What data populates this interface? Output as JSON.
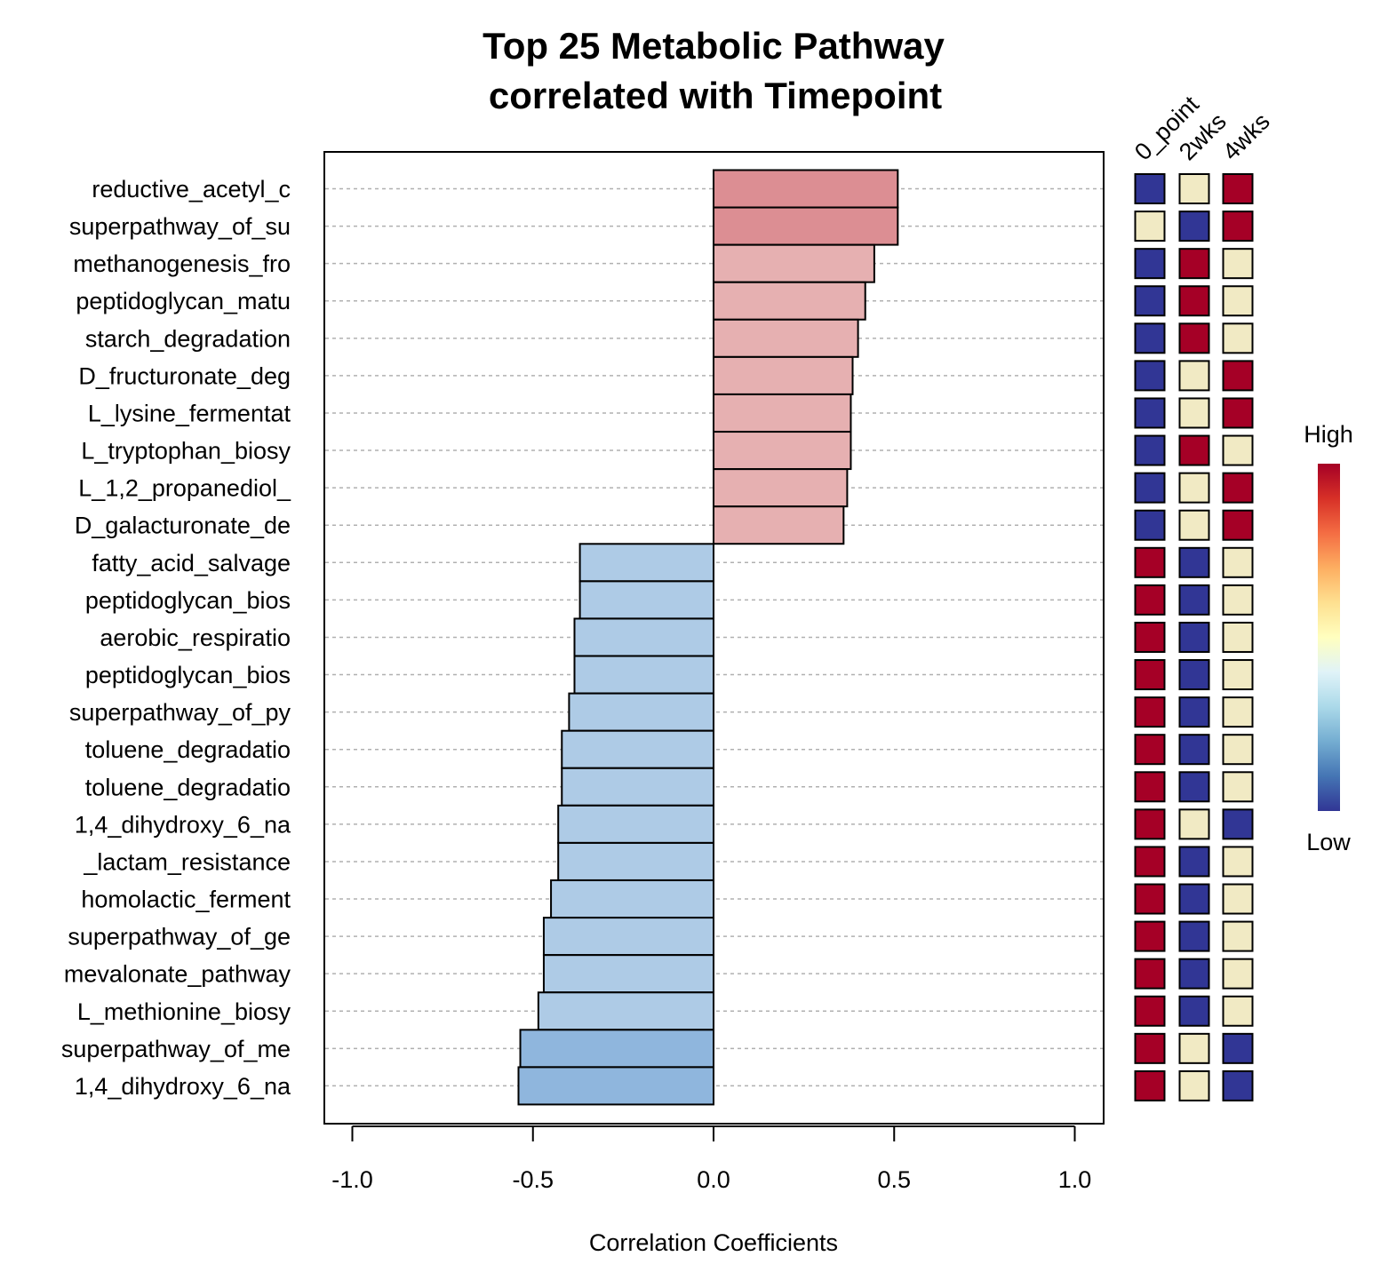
{
  "chart_data": {
    "type": "bar",
    "orientation": "horizontal",
    "title_lines": [
      "Top 25 Metabolic Pathway",
      "correlated with Timepoint"
    ],
    "xlabel": "Correlation Coefficients",
    "ylabel": "",
    "xlim": [
      -1.0,
      1.0
    ],
    "xticks": [
      -1.0,
      -0.5,
      0.0,
      0.5,
      1.0
    ],
    "xtick_labels": [
      "-1.0",
      "-0.5",
      "0.0",
      "0.5",
      "1.0"
    ],
    "grid": "dotted horizontal at each category",
    "categories": [
      "reductive_acetyl_c",
      "superpathway_of_su",
      "methanogenesis_fro",
      "peptidoglycan_matu",
      "starch_degradation",
      "D_fructuronate_deg",
      "L_lysine_fermentat",
      "L_tryptophan_biosy",
      "L_1,2_propanediol_",
      "D_galacturonate_de",
      "fatty_acid_salvage",
      "peptidoglycan_bios",
      "aerobic_respiratio",
      "peptidoglycan_bios",
      "superpathway_of_py",
      "toluene_degradatio",
      "toluene_degradatio",
      "1,4_dihydroxy_6_na",
      "_lactam_resistance",
      "homolactic_ferment",
      "superpathway_of_ge",
      "mevalonate_pathway",
      "L_methionine_biosy",
      "superpathway_of_me",
      "1,4_dihydroxy_6_na"
    ],
    "values": [
      0.51,
      0.51,
      0.445,
      0.42,
      0.4,
      0.385,
      0.38,
      0.38,
      0.37,
      0.36,
      -0.37,
      -0.37,
      -0.385,
      -0.385,
      -0.4,
      -0.42,
      -0.42,
      -0.43,
      -0.43,
      -0.45,
      -0.47,
      -0.47,
      -0.485,
      -0.535,
      -0.54
    ],
    "bar_colors": [
      "#dc8e93",
      "#dc8e93",
      "#e6b0b1",
      "#e6b0b1",
      "#e6b0b1",
      "#e6b0b1",
      "#e6b0b1",
      "#e6b0b1",
      "#e6b0b1",
      "#e6b0b1",
      "#aecbe6",
      "#aecbe6",
      "#aecbe6",
      "#aecbe6",
      "#aecbe6",
      "#aecbe6",
      "#aecbe6",
      "#aecbe6",
      "#aecbe6",
      "#aecbe6",
      "#aecbe6",
      "#aecbe6",
      "#aecbe6",
      "#8fb6dd",
      "#8fb6dd"
    ],
    "heatmap": {
      "columns": [
        "0_point",
        "2wks",
        "4wks"
      ],
      "levels": {
        "L": "#313695",
        "M": "#f1eac4",
        "H": "#a50026"
      },
      "rows": [
        [
          "L",
          "M",
          "H"
        ],
        [
          "M",
          "L",
          "H"
        ],
        [
          "L",
          "H",
          "M"
        ],
        [
          "L",
          "H",
          "M"
        ],
        [
          "L",
          "H",
          "M"
        ],
        [
          "L",
          "M",
          "H"
        ],
        [
          "L",
          "M",
          "H"
        ],
        [
          "L",
          "H",
          "M"
        ],
        [
          "L",
          "M",
          "H"
        ],
        [
          "L",
          "M",
          "H"
        ],
        [
          "H",
          "L",
          "M"
        ],
        [
          "H",
          "L",
          "M"
        ],
        [
          "H",
          "L",
          "M"
        ],
        [
          "H",
          "L",
          "M"
        ],
        [
          "H",
          "L",
          "M"
        ],
        [
          "H",
          "L",
          "M"
        ],
        [
          "H",
          "L",
          "M"
        ],
        [
          "H",
          "M",
          "L"
        ],
        [
          "H",
          "L",
          "M"
        ],
        [
          "H",
          "L",
          "M"
        ],
        [
          "H",
          "L",
          "M"
        ],
        [
          "H",
          "L",
          "M"
        ],
        [
          "H",
          "L",
          "M"
        ],
        [
          "H",
          "M",
          "L"
        ],
        [
          "H",
          "M",
          "L"
        ]
      ]
    },
    "legend": {
      "position": "right",
      "high_label": "High",
      "low_label": "Low",
      "colormap": [
        "#313695",
        "#4575b4",
        "#74add1",
        "#abd9e9",
        "#e0f3f8",
        "#ffffbf",
        "#fee090",
        "#fdae61",
        "#f46d43",
        "#d73027",
        "#a50026"
      ]
    }
  }
}
